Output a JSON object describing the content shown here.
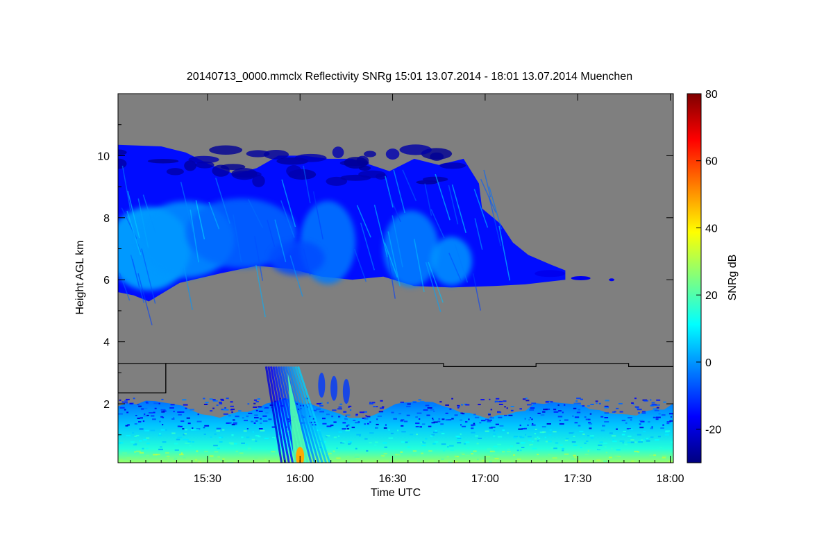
{
  "chart_data": {
    "type": "heatmap",
    "title": "20140713_0000.mmclx Reflectivity SNRg   15:01 13.07.2014 - 18:01 13.07.2014 Muenchen",
    "xlabel": "Time UTC",
    "ylabel": "Height AGL km",
    "xlim": [
      "15:01",
      "18:01"
    ],
    "ylim": [
      0.1,
      12
    ],
    "xticks": [
      {
        "label": "15:30",
        "value": 30
      },
      {
        "label": "16:00",
        "value": 60
      },
      {
        "label": "16:30",
        "value": 90
      },
      {
        "label": "17:00",
        "value": 120
      },
      {
        "label": "17:30",
        "value": 150
      },
      {
        "label": "18:00",
        "value": 180
      }
    ],
    "yticks": [
      {
        "label": "2",
        "value": 2
      },
      {
        "label": "4",
        "value": 4
      },
      {
        "label": "6",
        "value": 6
      },
      {
        "label": "8",
        "value": 8
      },
      {
        "label": "10",
        "value": 10
      }
    ],
    "colorbar": {
      "label": "SNRg dB",
      "range": [
        -30,
        80
      ],
      "ticks": [
        {
          "label": "-20",
          "value": -20
        },
        {
          "label": "0",
          "value": 0
        },
        {
          "label": "20",
          "value": 20
        },
        {
          "label": "40",
          "value": 40
        },
        {
          "label": "60",
          "value": 60
        },
        {
          "label": "80",
          "value": 80
        }
      ],
      "colormap": [
        "#00007f",
        "#0000ff",
        "#007fff",
        "#00ffff",
        "#7fff7f",
        "#ffff00",
        "#ff7f00",
        "#ff0000",
        "#7f0000"
      ]
    },
    "background_color": "#7f7f7f",
    "cloud_layers": [
      {
        "name": "ice cloud",
        "t_start": 0,
        "t_end": 140,
        "base_km": 5.7,
        "top_km": 10.3,
        "snr_db": [
          -25,
          10
        ]
      },
      {
        "name": "thin layer",
        "t_start": 135,
        "t_end": 158,
        "base_km": 6.0,
        "top_km": 6.3,
        "snr_db": [
          -25,
          -10
        ]
      },
      {
        "name": "boundary layer clutter",
        "t_start": 0,
        "t_end": 180,
        "base_km": 0.1,
        "top_km": 2.1,
        "snr_db": [
          -25,
          35
        ]
      },
      {
        "name": "precipitation streak",
        "t_start": 48,
        "t_end": 68,
        "base_km": 0.1,
        "top_km": 3.2,
        "snr_db": [
          -20,
          45
        ]
      }
    ],
    "boundary_line_km": [
      {
        "t_start": 0,
        "t_end": 15.5,
        "km": 2.35
      },
      {
        "t_start": 15.5,
        "t_end": 105.5,
        "km": 3.3
      },
      {
        "t_start": 105.5,
        "t_end": 135.5,
        "km": 3.2
      },
      {
        "t_start": 135.5,
        "t_end": 165.5,
        "km": 3.3
      },
      {
        "t_start": 165.5,
        "t_end": 180,
        "km": 3.2
      }
    ]
  }
}
